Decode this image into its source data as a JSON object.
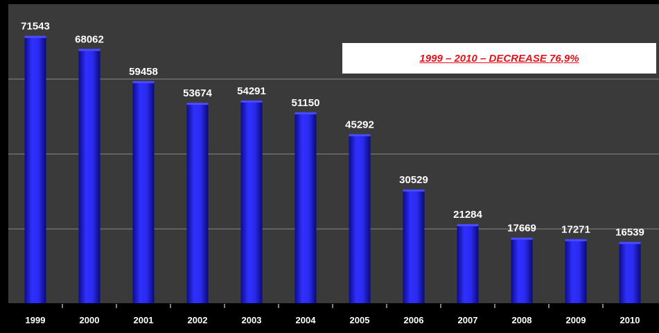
{
  "colors": {
    "background": "#000000",
    "plot_area": "#3a3a3a",
    "bar": "#2222dd",
    "gridline": "#8a8a8a",
    "text": "#ffffff",
    "annotation_text": "#e3121b",
    "annotation_box": "#ffffff"
  },
  "chart_data": {
    "type": "bar",
    "title": "",
    "xlabel": "",
    "ylabel": "",
    "categories": [
      "1999",
      "2000",
      "2001",
      "2002",
      "2003",
      "2004",
      "2005",
      "2006",
      "2007",
      "2008",
      "2009",
      "2010"
    ],
    "values": [
      71543,
      68062,
      59458,
      53674,
      54291,
      51150,
      45292,
      30529,
      21284,
      17669,
      17271,
      16539
    ],
    "data_labels": [
      "71543",
      "68062",
      "59458",
      "53674",
      "54291",
      "51150",
      "45292",
      "30529",
      "21284",
      "17669",
      "17271",
      "16539"
    ],
    "ylim": [
      0,
      80000
    ],
    "grid": true,
    "legend": "none",
    "annotation": "1999 – 2010 – DECREASE 76,9%"
  }
}
